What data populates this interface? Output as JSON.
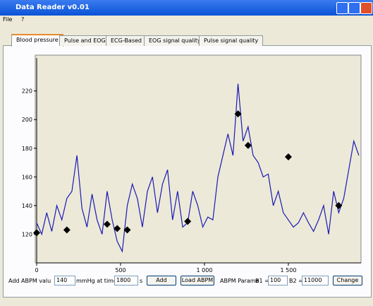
{
  "window": {
    "title": "Data Reader v0.01",
    "menu": [
      "File",
      "?"
    ],
    "tabs": [
      "Blood pressure",
      "Pulse and EOG",
      "ECG-Based",
      "EOG signal quality",
      "Pulse signal quality"
    ],
    "controls": {
      "add_label": "Add ABPM valu",
      "add_value": "140",
      "unit_label": "mmHg at time :",
      "time_value": "1800",
      "time_unit": "s",
      "add_button": "Add",
      "load_button": "Load ABPM",
      "param_label": "ABPM Parame",
      "b1_label": "B1 =",
      "b1_value": "100",
      "b2_label": "B2 =",
      "b2_value": "11000",
      "change_button": "Change"
    }
  },
  "chart_data": {
    "type": "line",
    "xlim": [
      0,
      1933
    ],
    "ylim": [
      100,
      245
    ],
    "xticks": [
      0,
      500,
      {
        "value": 1000,
        "label": "1 000"
      },
      {
        "value": 1500,
        "label": "1 500"
      }
    ],
    "yticks": [
      120,
      140,
      160,
      180,
      200,
      220
    ],
    "series": [
      {
        "color": "#1a1ab4",
        "x": [
          0,
          30,
          60,
          90,
          120,
          150,
          180,
          210,
          240,
          270,
          300,
          330,
          360,
          390,
          420,
          450,
          480,
          510,
          540,
          570,
          600,
          630,
          660,
          690,
          720,
          750,
          780,
          810,
          840,
          870,
          900,
          930,
          960,
          990,
          1020,
          1050,
          1080,
          1110,
          1140,
          1170,
          1200,
          1230,
          1260,
          1290,
          1320,
          1350,
          1380,
          1410,
          1440,
          1470,
          1500,
          1530,
          1560,
          1590,
          1620,
          1650,
          1680,
          1710,
          1740,
          1770,
          1800,
          1830,
          1860,
          1890,
          1920
        ],
        "values": [
          128,
          120,
          135,
          122,
          140,
          130,
          145,
          150,
          175,
          138,
          125,
          148,
          130,
          120,
          150,
          130,
          115,
          108,
          140,
          155,
          145,
          125,
          150,
          160,
          135,
          155,
          165,
          130,
          150,
          125,
          128,
          150,
          140,
          125,
          132,
          130,
          160,
          175,
          190,
          175,
          225,
          185,
          195,
          175,
          170,
          160,
          162,
          140,
          150,
          135,
          130,
          125,
          128,
          135,
          128,
          122,
          130,
          140,
          120,
          150,
          135,
          145,
          165,
          185,
          175
        ]
      },
      {
        "color": "#000000",
        "marker": "diamond",
        "x": [
          0,
          180,
          420,
          480,
          540,
          900,
          1200,
          1260,
          1500,
          1800
        ],
        "values": [
          121,
          123,
          127,
          124,
          123,
          129,
          204,
          182,
          174,
          140
        ]
      }
    ]
  }
}
